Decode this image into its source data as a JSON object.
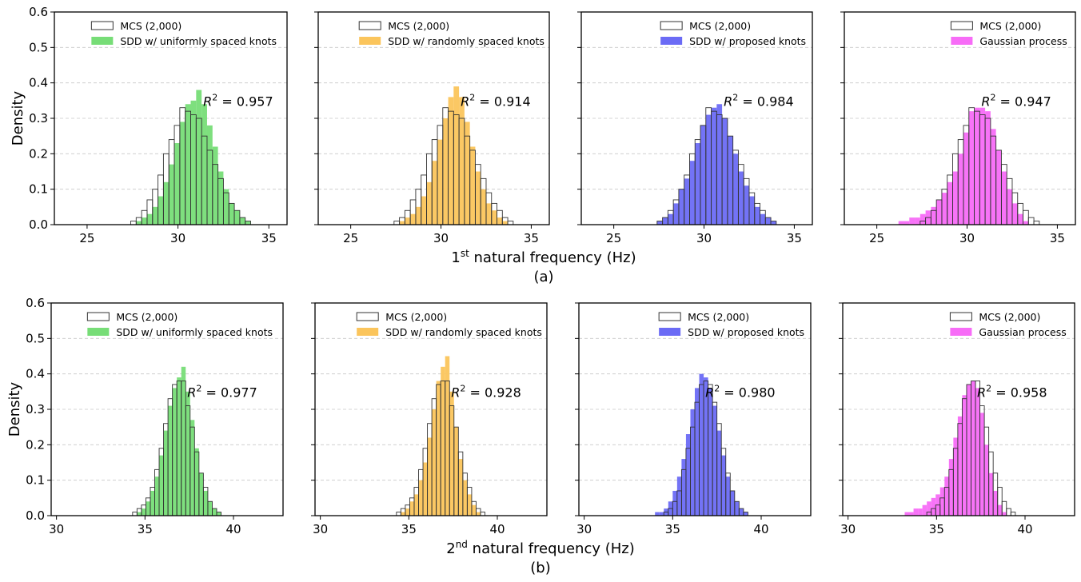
{
  "figure": {
    "rows": [
      {
        "xlabel_base": "1",
        "xlabel_sup": "st",
        "xlabel_rest": " natural frequency (Hz)",
        "caption": "(a)"
      },
      {
        "xlabel_base": "2",
        "xlabel_sup": "nd",
        "xlabel_rest": " natural frequency (Hz)",
        "caption": "(b)"
      }
    ],
    "ylabel": "Density",
    "legend_reference": "MCS (2,000)",
    "r2_prefix": "R",
    "r2_sup": "2",
    "r2_eq": " = "
  },
  "chart_data": [
    {
      "type": "histogram",
      "row": 0,
      "col": 0,
      "xlim": [
        23.2,
        36.0
      ],
      "ylim": [
        0,
        0.6
      ],
      "xticks": [
        25,
        30,
        35
      ],
      "yticks": [
        0.0,
        0.1,
        0.2,
        0.3,
        0.4,
        0.5,
        0.6
      ],
      "ytick_labels": [
        "0.0",
        "0.1",
        "0.2",
        "0.3",
        "0.4",
        "0.5",
        "0.6"
      ],
      "show_yticklabels": true,
      "legend": [
        "MCS (2,000)",
        "SDD w/ uniformly spaced knots"
      ],
      "legend_position": "top-right",
      "color": "#77dd77",
      "r2": "0.957",
      "bin_start": 27.4,
      "bin_width": 0.3,
      "reference_density": [
        0.01,
        0.02,
        0.04,
        0.07,
        0.1,
        0.14,
        0.2,
        0.24,
        0.28,
        0.33,
        0.32,
        0.31,
        0.3,
        0.25,
        0.21,
        0.17,
        0.13,
        0.09,
        0.06,
        0.04,
        0.02,
        0.01
      ],
      "model_density": [
        0.0,
        0.01,
        0.02,
        0.03,
        0.05,
        0.08,
        0.12,
        0.17,
        0.23,
        0.29,
        0.34,
        0.35,
        0.38,
        0.34,
        0.28,
        0.22,
        0.15,
        0.1,
        0.06,
        0.04,
        0.02,
        0.01
      ]
    },
    {
      "type": "histogram",
      "row": 0,
      "col": 1,
      "xlim": [
        23.2,
        36.0
      ],
      "ylim": [
        0,
        0.6
      ],
      "xticks": [
        25,
        30,
        35
      ],
      "yticks": [
        0.0,
        0.1,
        0.2,
        0.3,
        0.4,
        0.5,
        0.6
      ],
      "ytick_labels": [
        "0.0",
        "0.1",
        "0.2",
        "0.3",
        "0.4",
        "0.5",
        "0.6"
      ],
      "show_yticklabels": false,
      "legend": [
        "MCS (2,000)",
        "SDD w/ randomly spaced knots"
      ],
      "legend_position": "top-right",
      "color": "#fbc55c",
      "r2": "0.914",
      "bin_start": 27.4,
      "bin_width": 0.3,
      "reference_density": [
        0.01,
        0.02,
        0.04,
        0.07,
        0.1,
        0.14,
        0.2,
        0.24,
        0.28,
        0.33,
        0.32,
        0.31,
        0.3,
        0.25,
        0.21,
        0.17,
        0.13,
        0.09,
        0.06,
        0.04,
        0.02,
        0.01
      ],
      "model_density": [
        0.0,
        0.01,
        0.02,
        0.03,
        0.05,
        0.08,
        0.12,
        0.18,
        0.24,
        0.3,
        0.36,
        0.39,
        0.36,
        0.29,
        0.22,
        0.15,
        0.1,
        0.06,
        0.04,
        0.02,
        0.01,
        0.0
      ]
    },
    {
      "type": "histogram",
      "row": 0,
      "col": 2,
      "xlim": [
        23.2,
        36.0
      ],
      "ylim": [
        0,
        0.6
      ],
      "xticks": [
        25,
        30,
        35
      ],
      "yticks": [
        0.0,
        0.1,
        0.2,
        0.3,
        0.4,
        0.5,
        0.6
      ],
      "ytick_labels": [
        "0.0",
        "0.1",
        "0.2",
        "0.3",
        "0.4",
        "0.5",
        "0.6"
      ],
      "show_yticklabels": false,
      "legend": [
        "MCS (2,000)",
        "SDD w/ proposed knots"
      ],
      "legend_position": "top-right",
      "color": "#6b6bf5",
      "r2": "0.984",
      "bin_start": 27.4,
      "bin_width": 0.3,
      "reference_density": [
        0.01,
        0.02,
        0.04,
        0.07,
        0.1,
        0.14,
        0.2,
        0.24,
        0.28,
        0.33,
        0.32,
        0.31,
        0.3,
        0.25,
        0.21,
        0.17,
        0.13,
        0.09,
        0.06,
        0.04,
        0.02,
        0.01
      ],
      "model_density": [
        0.01,
        0.02,
        0.03,
        0.06,
        0.1,
        0.13,
        0.18,
        0.23,
        0.28,
        0.31,
        0.33,
        0.34,
        0.3,
        0.25,
        0.2,
        0.15,
        0.11,
        0.08,
        0.05,
        0.03,
        0.02,
        0.01
      ]
    },
    {
      "type": "histogram",
      "row": 0,
      "col": 3,
      "xlim": [
        23.2,
        36.0
      ],
      "ylim": [
        0,
        0.6
      ],
      "xticks": [
        25,
        30,
        35
      ],
      "yticks": [
        0.0,
        0.1,
        0.2,
        0.3,
        0.4,
        0.5,
        0.6
      ],
      "ytick_labels": [
        "0.0",
        "0.1",
        "0.2",
        "0.3",
        "0.4",
        "0.5",
        "0.6"
      ],
      "show_yticklabels": false,
      "legend": [
        "MCS (2,000)",
        "Gaussian process"
      ],
      "legend_position": "top-right",
      "color": "#f76cf7",
      "r2": "0.947",
      "bin_start": 25.9,
      "bin_width": 0.3,
      "reference_density": [
        0.0,
        0.0,
        0.0,
        0.0,
        0.0,
        0.01,
        0.02,
        0.04,
        0.07,
        0.1,
        0.14,
        0.2,
        0.24,
        0.28,
        0.33,
        0.32,
        0.31,
        0.3,
        0.25,
        0.21,
        0.17,
        0.13,
        0.09,
        0.06,
        0.04,
        0.02,
        0.01
      ],
      "model_density": [
        0.0,
        0.01,
        0.01,
        0.02,
        0.02,
        0.03,
        0.04,
        0.05,
        0.07,
        0.09,
        0.12,
        0.15,
        0.2,
        0.26,
        0.32,
        0.33,
        0.33,
        0.32,
        0.27,
        0.21,
        0.15,
        0.1,
        0.06,
        0.03,
        0.01,
        0.0,
        0.0
      ]
    },
    {
      "type": "histogram",
      "row": 1,
      "col": 0,
      "xlim": [
        29.7,
        42.8
      ],
      "ylim": [
        0,
        0.6
      ],
      "xticks": [
        30,
        35,
        40
      ],
      "yticks": [
        0.0,
        0.1,
        0.2,
        0.3,
        0.4,
        0.5,
        0.6
      ],
      "ytick_labels": [
        "0.0",
        "0.1",
        "0.2",
        "0.3",
        "0.4",
        "0.5",
        "0.6"
      ],
      "show_yticklabels": true,
      "legend": [
        "MCS (2,000)",
        "SDD w/ uniformly spaced knots"
      ],
      "legend_position": "top-right",
      "color": "#77dd77",
      "r2": "0.977",
      "bin_start": 34.3,
      "bin_width": 0.25,
      "reference_density": [
        0.01,
        0.02,
        0.03,
        0.05,
        0.08,
        0.13,
        0.19,
        0.26,
        0.33,
        0.37,
        0.38,
        0.38,
        0.31,
        0.25,
        0.18,
        0.12,
        0.08,
        0.04,
        0.02,
        0.01
      ],
      "model_density": [
        0.0,
        0.01,
        0.02,
        0.04,
        0.07,
        0.11,
        0.17,
        0.24,
        0.31,
        0.36,
        0.39,
        0.42,
        0.35,
        0.27,
        0.19,
        0.12,
        0.07,
        0.04,
        0.02,
        0.01
      ]
    },
    {
      "type": "histogram",
      "row": 1,
      "col": 1,
      "xlim": [
        29.7,
        42.8
      ],
      "ylim": [
        0,
        0.6
      ],
      "xticks": [
        30,
        35,
        40
      ],
      "yticks": [
        0.0,
        0.1,
        0.2,
        0.3,
        0.4,
        0.5,
        0.6
      ],
      "ytick_labels": [
        "0.0",
        "0.1",
        "0.2",
        "0.3",
        "0.4",
        "0.5",
        "0.6"
      ],
      "show_yticklabels": false,
      "legend": [
        "MCS (2,000)",
        "SDD w/ randomly spaced knots"
      ],
      "legend_position": "top-right",
      "color": "#fbc55c",
      "r2": "0.928",
      "bin_start": 34.3,
      "bin_width": 0.25,
      "reference_density": [
        0.01,
        0.02,
        0.03,
        0.05,
        0.08,
        0.13,
        0.19,
        0.26,
        0.33,
        0.37,
        0.38,
        0.38,
        0.31,
        0.25,
        0.18,
        0.12,
        0.08,
        0.04,
        0.02,
        0.01
      ],
      "model_density": [
        0.0,
        0.01,
        0.02,
        0.04,
        0.06,
        0.1,
        0.15,
        0.22,
        0.3,
        0.38,
        0.42,
        0.45,
        0.35,
        0.25,
        0.16,
        0.1,
        0.06,
        0.03,
        0.01,
        0.0
      ]
    },
    {
      "type": "histogram",
      "row": 1,
      "col": 2,
      "xlim": [
        29.7,
        42.8
      ],
      "ylim": [
        0,
        0.6
      ],
      "xticks": [
        30,
        35,
        40
      ],
      "yticks": [
        0.0,
        0.1,
        0.2,
        0.3,
        0.4,
        0.5,
        0.6
      ],
      "ytick_labels": [
        "0.0",
        "0.1",
        "0.2",
        "0.3",
        "0.4",
        "0.5",
        "0.6"
      ],
      "show_yticklabels": false,
      "legend": [
        "MCS (2,000)",
        "SDD w/ proposed knots"
      ],
      "legend_position": "top-right",
      "color": "#6b6bf5",
      "r2": "0.980",
      "bin_start": 34.0,
      "bin_width": 0.25,
      "reference_density": [
        0.0,
        0.0,
        0.01,
        0.02,
        0.04,
        0.07,
        0.13,
        0.19,
        0.25,
        0.32,
        0.37,
        0.38,
        0.37,
        0.32,
        0.26,
        0.19,
        0.12,
        0.07,
        0.04,
        0.02,
        0.01
      ],
      "model_density": [
        0.01,
        0.01,
        0.02,
        0.04,
        0.07,
        0.11,
        0.16,
        0.23,
        0.3,
        0.36,
        0.4,
        0.39,
        0.36,
        0.31,
        0.24,
        0.17,
        0.11,
        0.07,
        0.04,
        0.02,
        0.01
      ]
    },
    {
      "type": "histogram",
      "row": 1,
      "col": 3,
      "xlim": [
        29.7,
        42.8
      ],
      "ylim": [
        0,
        0.6
      ],
      "xticks": [
        30,
        35,
        40
      ],
      "yticks": [
        0.0,
        0.1,
        0.2,
        0.3,
        0.4,
        0.5,
        0.6
      ],
      "ytick_labels": [
        "0.0",
        "0.1",
        "0.2",
        "0.3",
        "0.4",
        "0.5",
        "0.6"
      ],
      "show_yticklabels": false,
      "legend": [
        "MCS (2,000)",
        "Gaussian process"
      ],
      "legend_position": "top-right",
      "color": "#f76cf7",
      "r2": "0.958",
      "bin_start": 33.2,
      "bin_width": 0.25,
      "reference_density": [
        0.0,
        0.0,
        0.0,
        0.0,
        0.0,
        0.01,
        0.02,
        0.03,
        0.05,
        0.08,
        0.13,
        0.19,
        0.26,
        0.33,
        0.37,
        0.38,
        0.38,
        0.31,
        0.25,
        0.18,
        0.12,
        0.08,
        0.04,
        0.02,
        0.01
      ],
      "model_density": [
        0.01,
        0.01,
        0.02,
        0.02,
        0.03,
        0.04,
        0.05,
        0.06,
        0.08,
        0.11,
        0.16,
        0.22,
        0.28,
        0.34,
        0.37,
        0.38,
        0.36,
        0.29,
        0.2,
        0.12,
        0.07,
        0.03,
        0.01,
        0.0,
        0.0
      ]
    }
  ]
}
